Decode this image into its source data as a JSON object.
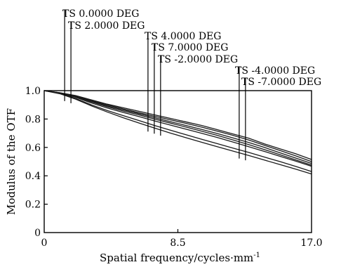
{
  "chart_data": {
    "type": "line",
    "title": "",
    "xlabel": "Spatial frequency/cycles·mm",
    "xlabel_superscript": "-1",
    "ylabel": "Modulus of the OTF",
    "xlim": [
      0,
      17.0
    ],
    "ylim": [
      0,
      1.0
    ],
    "x_ticks": [
      {
        "value": 0,
        "label": "0"
      },
      {
        "value": 8.5,
        "label": "8.5"
      },
      {
        "value": 17.0,
        "label": "17.0"
      }
    ],
    "y_ticks": [
      {
        "value": 0,
        "label": "0"
      },
      {
        "value": 0.2,
        "label": "0.2"
      },
      {
        "value": 0.4,
        "label": "0.4"
      },
      {
        "value": 0.6,
        "label": "0.6"
      },
      {
        "value": 0.8,
        "label": "0.8"
      },
      {
        "value": 1.0,
        "label": "1.0"
      }
    ],
    "grid": false,
    "legend": [
      {
        "label": "TS 0.0000 DEG",
        "marker_x": 1.3
      },
      {
        "label": "TS 2.0000 DEG",
        "marker_x": 1.7
      },
      {
        "label": "TS 4.0000 DEG",
        "marker_x": 6.6
      },
      {
        "label": "TS 7.0000 DEG",
        "marker_x": 7.0
      },
      {
        "label": "TS -2.0000 DEG",
        "marker_x": 7.4
      },
      {
        "label": "TS -4.0000 DEG",
        "marker_x": 12.4
      },
      {
        "label": "TS -7.0000 DEG",
        "marker_x": 12.8
      }
    ],
    "series": [
      {
        "x": [
          0,
          1,
          2,
          3,
          4,
          5,
          6,
          7,
          8,
          9,
          10,
          11,
          12,
          13,
          14,
          15,
          16,
          17
        ],
        "values": [
          1.0,
          0.985,
          0.965,
          0.935,
          0.905,
          0.88,
          0.855,
          0.83,
          0.805,
          0.78,
          0.755,
          0.725,
          0.695,
          0.665,
          0.625,
          0.59,
          0.555,
          0.515
        ]
      },
      {
        "x": [
          0,
          1,
          2,
          3,
          4,
          5,
          6,
          7,
          8,
          9,
          10,
          11,
          12,
          13,
          14,
          15,
          16,
          17
        ],
        "values": [
          1.0,
          0.985,
          0.962,
          0.93,
          0.9,
          0.872,
          0.845,
          0.82,
          0.795,
          0.77,
          0.743,
          0.715,
          0.685,
          0.652,
          0.615,
          0.578,
          0.54,
          0.5
        ]
      },
      {
        "x": [
          0,
          1,
          2,
          3,
          4,
          5,
          6,
          7,
          8,
          9,
          10,
          11,
          12,
          13,
          14,
          15,
          16,
          17
        ],
        "values": [
          1.0,
          0.984,
          0.96,
          0.926,
          0.893,
          0.865,
          0.838,
          0.81,
          0.782,
          0.755,
          0.727,
          0.698,
          0.667,
          0.635,
          0.6,
          0.562,
          0.525,
          0.487
        ]
      },
      {
        "x": [
          0,
          1,
          2,
          3,
          4,
          5,
          6,
          7,
          8,
          9,
          10,
          11,
          12,
          13,
          14,
          15,
          16,
          17
        ],
        "values": [
          1.0,
          0.983,
          0.957,
          0.92,
          0.887,
          0.857,
          0.83,
          0.8,
          0.772,
          0.744,
          0.715,
          0.685,
          0.653,
          0.62,
          0.585,
          0.548,
          0.512,
          0.475
        ]
      },
      {
        "x": [
          0,
          1,
          2,
          3,
          4,
          5,
          6,
          7,
          8,
          9,
          10,
          11,
          12,
          13,
          14,
          15,
          16,
          17
        ],
        "values": [
          1.0,
          0.982,
          0.953,
          0.913,
          0.878,
          0.847,
          0.818,
          0.787,
          0.758,
          0.729,
          0.7,
          0.67,
          0.638,
          0.605,
          0.572,
          0.537,
          0.503,
          0.467
        ]
      },
      {
        "x": [
          0,
          1,
          2,
          3,
          4,
          5,
          6,
          7,
          8,
          9,
          10,
          11,
          12,
          13,
          14,
          15,
          16,
          17
        ],
        "values": [
          1.0,
          0.98,
          0.945,
          0.9,
          0.86,
          0.825,
          0.79,
          0.755,
          0.722,
          0.69,
          0.658,
          0.627,
          0.595,
          0.565,
          0.532,
          0.5,
          0.466,
          0.43
        ]
      },
      {
        "x": [
          0,
          1,
          2,
          3,
          4,
          5,
          6,
          7,
          8,
          9,
          10,
          11,
          12,
          13,
          14,
          15,
          16,
          17
        ],
        "values": [
          1.0,
          0.978,
          0.94,
          0.893,
          0.85,
          0.81,
          0.773,
          0.737,
          0.702,
          0.669,
          0.637,
          0.605,
          0.574,
          0.543,
          0.511,
          0.479,
          0.447,
          0.413
        ]
      }
    ]
  }
}
